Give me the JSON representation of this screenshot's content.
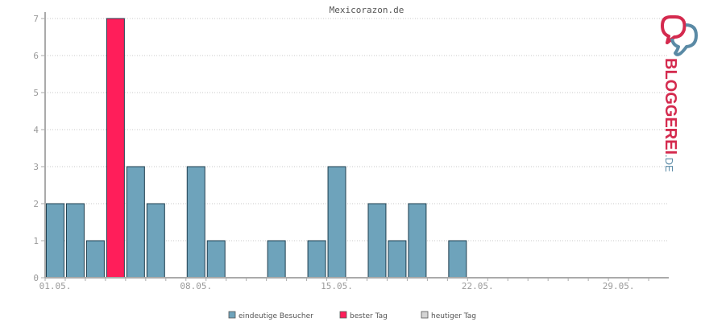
{
  "chart_data": {
    "type": "bar",
    "title": "Mexicorazon.de",
    "ylim": [
      0,
      7
    ],
    "yticks": [
      0,
      1,
      2,
      3,
      4,
      5,
      6,
      7
    ],
    "grid": true,
    "legend_position": "bottom-center",
    "day_count": 31,
    "x_tick_labels": [
      {
        "day": 1,
        "label": "01.05."
      },
      {
        "day": 8,
        "label": "08.05."
      },
      {
        "day": 15,
        "label": "15.05."
      },
      {
        "day": 22,
        "label": "22.05."
      },
      {
        "day": 29,
        "label": "29.05."
      }
    ],
    "days": [
      1,
      2,
      3,
      4,
      5,
      6,
      7,
      8,
      9,
      10,
      11,
      12,
      13,
      14,
      15,
      16,
      17,
      18,
      19,
      20,
      21,
      22,
      23,
      24,
      25,
      26,
      27,
      28,
      29,
      30,
      31
    ],
    "values": [
      2,
      2,
      1,
      7,
      3,
      2,
      0,
      3,
      1,
      0,
      0,
      1,
      0,
      1,
      3,
      0,
      2,
      1,
      2,
      0,
      1,
      0,
      0,
      0,
      0,
      0,
      0,
      0,
      0,
      0,
      0
    ],
    "best_day": 4,
    "series": [
      {
        "name": "eindeutige Besucher",
        "color": "#6ea3bb"
      },
      {
        "name": "bester Tag",
        "color": "#ff1e5a"
      },
      {
        "name": "heutiger Tag",
        "color": "#d4d4d4"
      }
    ]
  },
  "logo": {
    "text_main": "BLOGGEREI",
    "text_suffix": ".DE",
    "color_main": "#d42a4e",
    "color_suffix": "#5a8aa5"
  }
}
